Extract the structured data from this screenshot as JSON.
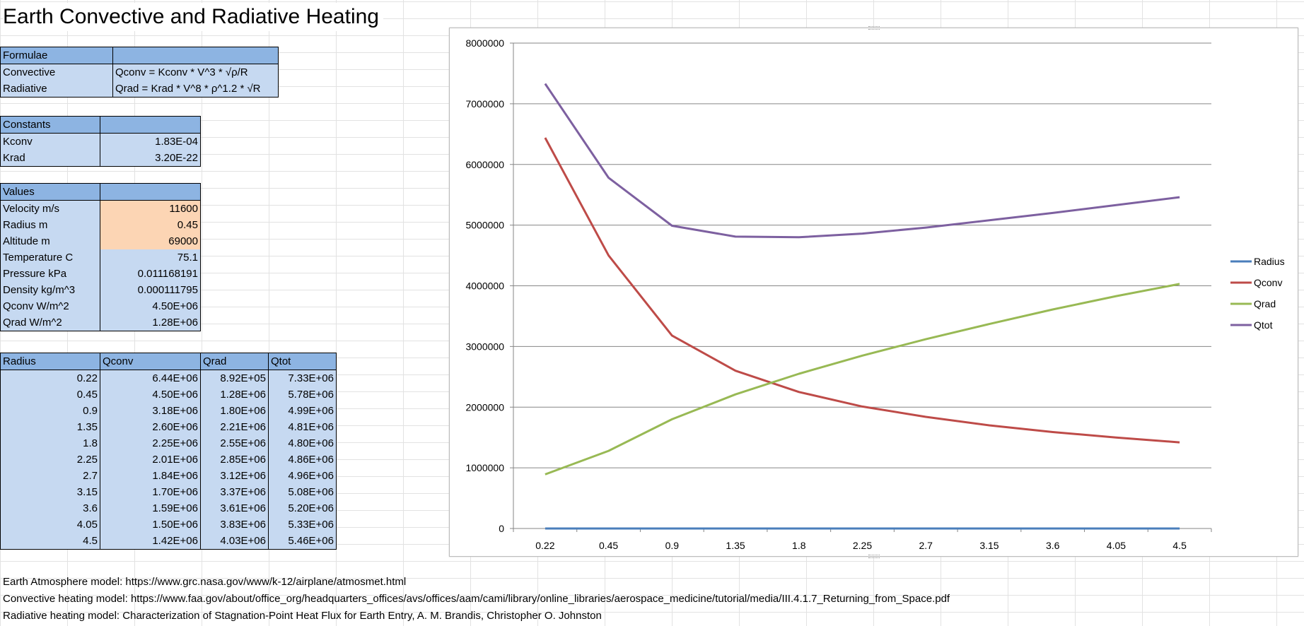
{
  "sheet": {
    "title": "Earth Convective and Radiative Heating"
  },
  "formulae": {
    "header": "Formulae",
    "rows": [
      {
        "label": "Convective",
        "value": "Qconv = Kconv * V^3 * √ρ/R"
      },
      {
        "label": "Radiative",
        "value": "Qrad = Krad * V^8 * ρ^1.2 * √R"
      }
    ]
  },
  "constants": {
    "header": "Constants",
    "rows": [
      {
        "label": "Kconv",
        "value": "1.83E-04"
      },
      {
        "label": "Krad",
        "value": "3.20E-22"
      }
    ]
  },
  "values": {
    "header": "Values",
    "rows": [
      {
        "label": "Velocity m/s",
        "value": "11600"
      },
      {
        "label": "Radius m",
        "value": "0.45"
      },
      {
        "label": "Altitude m",
        "value": "69000"
      },
      {
        "label": "Temperature C",
        "value": "75.1"
      },
      {
        "label": "Pressure kPa",
        "value": "0.011168191"
      },
      {
        "label": "Density kg/m^3",
        "value": "0.000111795"
      },
      {
        "label": "Qconv W/m^2",
        "value": "4.50E+06"
      },
      {
        "label": "Qrad W/m^2",
        "value": "1.28E+06"
      }
    ]
  },
  "results": {
    "headers": [
      "Radius",
      "Qconv",
      "Qrad",
      "Qtot"
    ],
    "rows": [
      [
        "0.22",
        "6.44E+06",
        "8.92E+05",
        "7.33E+06"
      ],
      [
        "0.45",
        "4.50E+06",
        "1.28E+06",
        "5.78E+06"
      ],
      [
        "0.9",
        "3.18E+06",
        "1.80E+06",
        "4.99E+06"
      ],
      [
        "1.35",
        "2.60E+06",
        "2.21E+06",
        "4.81E+06"
      ],
      [
        "1.8",
        "2.25E+06",
        "2.55E+06",
        "4.80E+06"
      ],
      [
        "2.25",
        "2.01E+06",
        "2.85E+06",
        "4.86E+06"
      ],
      [
        "2.7",
        "1.84E+06",
        "3.12E+06",
        "4.96E+06"
      ],
      [
        "3.15",
        "1.70E+06",
        "3.37E+06",
        "5.08E+06"
      ],
      [
        "3.6",
        "1.59E+06",
        "3.61E+06",
        "5.20E+06"
      ],
      [
        "4.05",
        "1.50E+06",
        "3.83E+06",
        "5.33E+06"
      ],
      [
        "4.5",
        "1.42E+06",
        "4.03E+06",
        "5.46E+06"
      ]
    ]
  },
  "references": [
    "Earth Atmosphere model: https://www.grc.nasa.gov/www/k-12/airplane/atmosmet.html",
    "Convective heating model: https://www.faa.gov/about/office_org/headquarters_offices/avs/offices/aam/cami/library/online_libraries/aerospace_medicine/tutorial/media/III.4.1.7_Returning_from_Space.pdf",
    "Radiative heating model: Characterization of Stagnation-Point Heat Flux for Earth Entry, A. M. Brandis, Christopher O. Johnston"
  ],
  "chart_data": {
    "type": "line",
    "categories": [
      "0.22",
      "0.45",
      "0.9",
      "1.35",
      "1.8",
      "2.25",
      "2.7",
      "3.15",
      "3.6",
      "4.05",
      "4.5"
    ],
    "series": [
      {
        "name": "Radius",
        "color": "#4a7ebb",
        "values": [
          0.22,
          0.45,
          0.9,
          1.35,
          1.8,
          2.25,
          2.7,
          3.15,
          3.6,
          4.05,
          4.5
        ]
      },
      {
        "name": "Qconv",
        "color": "#be4b48",
        "values": [
          6440000,
          4500000,
          3180000,
          2600000,
          2250000,
          2010000,
          1840000,
          1700000,
          1590000,
          1500000,
          1420000
        ]
      },
      {
        "name": "Qrad",
        "color": "#98b954",
        "values": [
          892000,
          1280000,
          1800000,
          2210000,
          2550000,
          2850000,
          3120000,
          3370000,
          3610000,
          3830000,
          4030000
        ]
      },
      {
        "name": "Qtot",
        "color": "#7d60a0",
        "values": [
          7330000,
          5780000,
          4990000,
          4810000,
          4800000,
          4860000,
          4960000,
          5080000,
          5200000,
          5330000,
          5460000
        ]
      }
    ],
    "y_ticks": [
      "0",
      "1000000",
      "2000000",
      "3000000",
      "4000000",
      "5000000",
      "6000000",
      "7000000",
      "8000000"
    ],
    "ylim": [
      0,
      8000000
    ],
    "grid": true,
    "legend_position": "right"
  }
}
